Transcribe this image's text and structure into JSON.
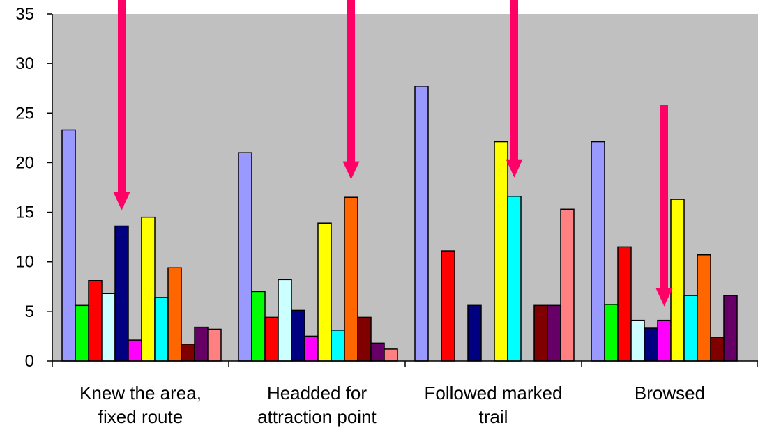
{
  "chart_data": {
    "type": "bar",
    "title": "",
    "xlabel": "",
    "ylabel": "",
    "ylim": [
      0,
      35
    ],
    "yticks": [
      0,
      5,
      10,
      15,
      20,
      25,
      30,
      35
    ],
    "grid": false,
    "plot_background": "#c0c0c0",
    "categories": [
      [
        "Knew the area,",
        "fixed route"
      ],
      [
        "Headded for",
        "attraction point"
      ],
      [
        "Followed marked",
        "trail"
      ],
      [
        "Browsed"
      ]
    ],
    "series": [
      {
        "color": "#9999ff",
        "values": [
          23.3,
          21.0,
          27.7,
          22.1
        ]
      },
      {
        "color": "#00ff00",
        "values": [
          5.6,
          7.0,
          0,
          5.7
        ]
      },
      {
        "color": "#ff0000",
        "values": [
          8.1,
          4.4,
          11.1,
          11.5
        ]
      },
      {
        "color": "#ccffff",
        "values": [
          6.8,
          8.2,
          0,
          4.1
        ]
      },
      {
        "color": "#000080",
        "values": [
          13.6,
          5.1,
          5.6,
          3.3
        ]
      },
      {
        "color": "#ff00ff",
        "values": [
          2.1,
          2.5,
          0,
          4.1
        ]
      },
      {
        "color": "#ffff00",
        "values": [
          14.5,
          13.9,
          22.1,
          16.3
        ]
      },
      {
        "color": "#00ffff",
        "values": [
          6.4,
          3.1,
          16.6,
          6.6
        ]
      },
      {
        "color": "#ff6600",
        "values": [
          9.4,
          16.5,
          0,
          10.7
        ]
      },
      {
        "color": "#800000",
        "values": [
          1.7,
          4.4,
          5.6,
          2.4
        ]
      },
      {
        "color": "#660066",
        "values": [
          3.4,
          1.8,
          5.6,
          6.6
        ]
      },
      {
        "color": "#ff8080",
        "values": [
          3.2,
          1.2,
          15.3,
          0
        ]
      }
    ],
    "annotations": [
      {
        "type": "arrow",
        "color": "#ff0066",
        "category_index": 0,
        "series_index": 4,
        "y_from": 35,
        "y_to": 15.2
      },
      {
        "type": "arrow",
        "color": "#ff0066",
        "category_index": 1,
        "series_index": 8,
        "y_from": 35,
        "y_to": 18.3
      },
      {
        "type": "arrow",
        "color": "#ff0066",
        "category_index": 2,
        "series_index": 7,
        "y_from": 35,
        "y_to": 18.5
      },
      {
        "type": "arrow",
        "color": "#ff0066",
        "category_index": 3,
        "series_index": 5,
        "y_from": 25.8,
        "y_to": 5.5
      }
    ]
  }
}
